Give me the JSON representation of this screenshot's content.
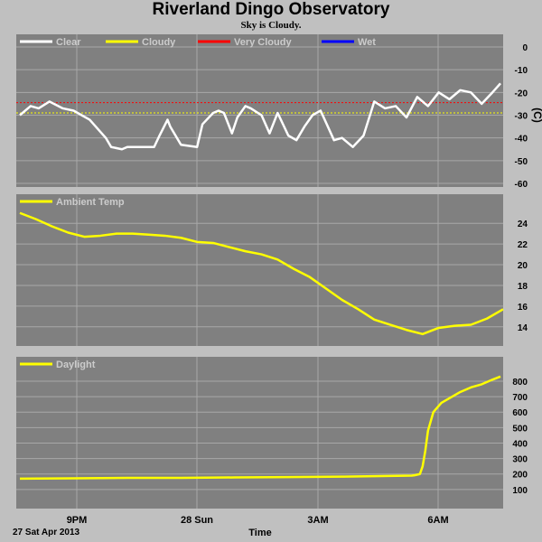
{
  "header": {
    "title": "Riverland Dingo Observatory",
    "status": "Sky is Cloudy."
  },
  "xaxis": {
    "ticks": [
      "9PM",
      "28 Sun",
      "3AM",
      "6AM"
    ],
    "date_label": "27 Sat Apr 2013",
    "title": "Time"
  },
  "colors": {
    "panel_bg": "#808080",
    "page_bg": "#c0c0c0",
    "grid": "#a8a8a8",
    "clear": "#ffffff",
    "cloudy": "#ffff00",
    "very_cloudy": "#ff0000",
    "wet": "#0000ff"
  },
  "chart_data": [
    {
      "type": "line",
      "name": "sky",
      "ylabel": "(C)",
      "ylim": [
        -60,
        0
      ],
      "yticks": [
        0,
        -10,
        -20,
        -30,
        -40,
        -50,
        -60
      ],
      "x_hours": [
        0,
        9
      ],
      "legend": [
        {
          "name": "Clear",
          "color": "#ffffff"
        },
        {
          "name": "Cloudy",
          "color": "#ffff00"
        },
        {
          "name": "Very Cloudy",
          "color": "#ff0000"
        },
        {
          "name": "Wet",
          "color": "#0000ff"
        }
      ],
      "thresholds": [
        {
          "value": -24.5,
          "color": "#ff0000"
        },
        {
          "value": -29,
          "color": "#ffff00"
        }
      ],
      "series": [
        {
          "x": [
            0,
            0.2,
            0.35,
            0.55,
            0.8,
            1.0,
            1.3,
            1.6,
            1.7,
            1.9,
            2.0,
            2.2,
            2.5,
            2.6,
            2.75,
            2.8,
            3.0,
            3.3,
            3.4,
            3.6,
            3.7,
            3.8,
            3.95,
            4.05,
            4.2,
            4.3,
            4.5,
            4.65,
            4.8,
            5.0,
            5.15,
            5.3,
            5.45,
            5.6,
            5.85,
            6.0,
            6.2,
            6.4,
            6.6,
            6.8,
            7.0,
            7.2,
            7.4,
            7.6,
            7.8,
            8.0,
            8.2,
            8.4,
            8.6,
            8.8,
            8.95
          ],
          "y": [
            -30,
            -26,
            -27,
            -24,
            -27,
            -28,
            -32,
            -40,
            -44,
            -45,
            -44,
            -44,
            -44,
            -39,
            -32,
            -35,
            -43,
            -44,
            -34,
            -29,
            -28,
            -29,
            -38,
            -31,
            -26,
            -27,
            -30,
            -38,
            -29,
            -39,
            -41,
            -35,
            -30,
            -28,
            -41,
            -40,
            -44,
            -39,
            -24,
            -27,
            -26,
            -31,
            -22,
            -26,
            -20,
            -23,
            -19,
            -20,
            -25,
            -20,
            -16
          ],
          "color": "#ffffff"
        }
      ]
    },
    {
      "type": "line",
      "name": "ambient",
      "legend": [
        {
          "name": "Ambient Temp",
          "color": "#ffff00"
        }
      ],
      "ylim": [
        12.5,
        25.5
      ],
      "yticks": [
        14,
        16,
        18,
        20,
        22,
        24
      ],
      "x_hours": [
        0,
        9
      ],
      "series": [
        {
          "x": [
            0,
            0.3,
            0.6,
            0.9,
            1.2,
            1.5,
            1.8,
            2.1,
            2.4,
            2.7,
            3.0,
            3.3,
            3.6,
            3.9,
            4.2,
            4.5,
            4.8,
            5.1,
            5.4,
            5.7,
            6.0,
            6.3,
            6.6,
            6.9,
            7.2,
            7.5,
            7.8,
            8.1,
            8.4,
            8.7,
            9.0
          ],
          "y": [
            25.0,
            24.4,
            23.7,
            23.1,
            22.7,
            22.8,
            23.0,
            23.0,
            22.9,
            22.8,
            22.6,
            22.2,
            22.1,
            21.7,
            21.3,
            21.0,
            20.5,
            19.6,
            18.8,
            17.7,
            16.6,
            15.7,
            14.7,
            14.2,
            13.7,
            13.3,
            13.9,
            14.1,
            14.2,
            14.8,
            15.7
          ],
          "color": "#ffff00"
        }
      ]
    },
    {
      "type": "line",
      "name": "daylight",
      "legend": [
        {
          "name": "Daylight",
          "color": "#ffff00"
        }
      ],
      "ylim": [
        0,
        870
      ],
      "yticks": [
        100,
        200,
        300,
        400,
        500,
        600,
        700,
        800
      ],
      "x_hours": [
        0,
        9
      ],
      "series": [
        {
          "x": [
            0,
            1,
            2,
            3,
            4,
            5,
            6,
            7.3,
            7.35,
            7.45,
            7.5,
            7.55,
            7.6,
            7.7,
            7.85,
            8.0,
            8.2,
            8.4,
            8.6,
            8.8,
            8.95
          ],
          "y": [
            170,
            172,
            175,
            175,
            178,
            180,
            183,
            190,
            192,
            200,
            250,
            350,
            480,
            600,
            660,
            690,
            730,
            760,
            780,
            810,
            830
          ],
          "color": "#ffff00"
        }
      ]
    }
  ]
}
